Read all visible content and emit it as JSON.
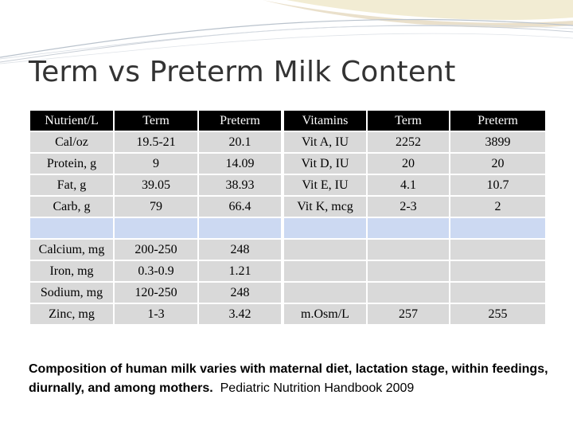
{
  "slide": {
    "title": "Term vs Preterm Milk Content",
    "caption_bold": "Composition of human milk varies with maternal diet, lactation stage, within feedings, diurnally, and among mothers.",
    "caption_source": "Pediatric Nutrition Handbook 2009"
  },
  "table": {
    "headers": [
      "Nutrient/L",
      "Term",
      "Preterm",
      "Vitamins",
      "Term",
      "Preterm"
    ],
    "rows": [
      [
        "Cal/oz",
        "19.5-21",
        "20.1",
        "Vit A, IU",
        "2252",
        "3899"
      ],
      [
        "Protein, g",
        "9",
        "14.09",
        "Vit D, IU",
        "20",
        "20"
      ],
      [
        "Fat, g",
        "39.05",
        "38.93",
        "Vit E, IU",
        "4.1",
        "10.7"
      ],
      [
        "Carb, g",
        "79",
        "66.4",
        "Vit K, mcg",
        "2-3",
        "2"
      ],
      [
        "",
        "",
        "",
        "",
        "",
        ""
      ],
      [
        "Calcium, mg",
        "200-250",
        "248",
        "",
        "",
        ""
      ],
      [
        "Iron, mg",
        "0.3-0.9",
        "1.21",
        "",
        "",
        ""
      ],
      [
        "Sodium, mg",
        "120-250",
        "248",
        "",
        "",
        ""
      ],
      [
        "Zinc, mg",
        "1-3",
        "3.42",
        "m.Osm/L",
        "257",
        "255"
      ]
    ]
  },
  "colors": {
    "header_bg": "#000000",
    "cell_bg": "#d9d9d9",
    "blank_row_bg": "#ccd9f2",
    "highlight_text": "#c00000",
    "title_text": "#333333"
  }
}
